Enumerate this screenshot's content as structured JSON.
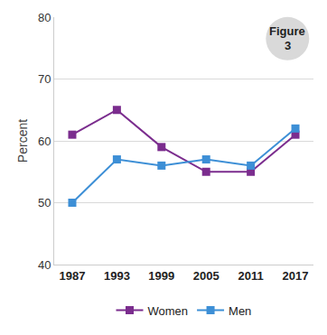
{
  "chart_data": {
    "type": "line",
    "y_label": "Percent",
    "annotations": [
      "Figure",
      "3"
    ],
    "categories": [
      "1987",
      "1993",
      "1999",
      "2005",
      "2011",
      "2017"
    ],
    "series": [
      {
        "name": "Women",
        "color": "#7b2d8e",
        "values": [
          61,
          65,
          59,
          55,
          55,
          61
        ]
      },
      {
        "name": "Men",
        "color": "#3d8fd6",
        "values": [
          50,
          57,
          56,
          57,
          56,
          62
        ]
      }
    ],
    "ylim": [
      40,
      80
    ],
    "yticks": [
      40,
      50,
      60,
      70,
      80
    ],
    "grid": true,
    "legend": "bottom",
    "marker": "square"
  }
}
